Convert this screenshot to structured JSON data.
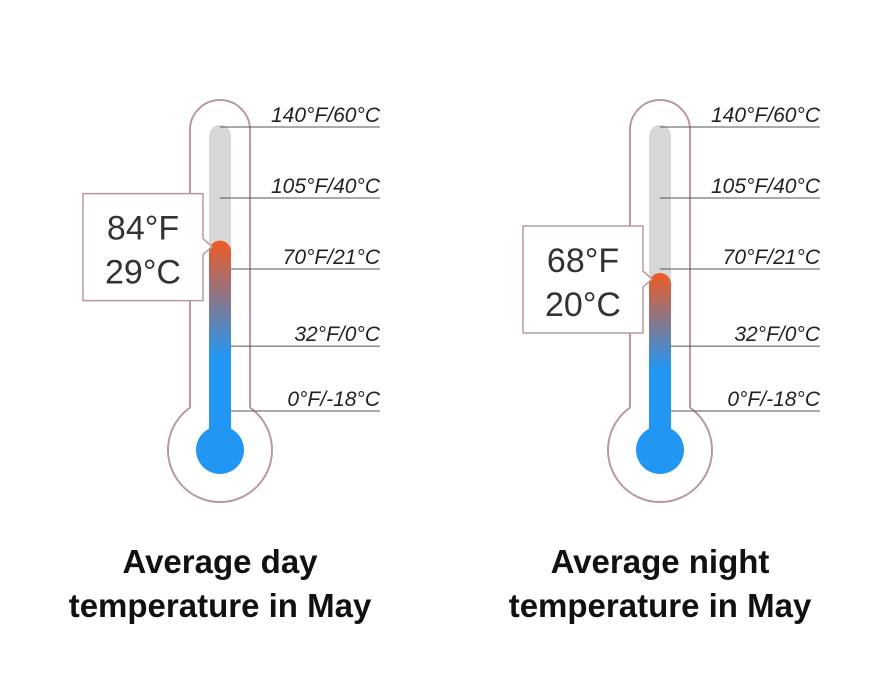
{
  "colors": {
    "outline": "#b89a9c",
    "tube_empty": "#d7d7d7",
    "mercury_cold": "#2196f3",
    "mercury_hot": "#ef5a24",
    "tick_line": "#555555",
    "reading_border": "#b89a9c"
  },
  "chart_data": [
    {
      "type": "thermometer",
      "title_lines": [
        "Average day",
        "temperature in May"
      ],
      "value_f": 84,
      "value_c": 29,
      "reading_f": "84°F",
      "reading_c": "29°C",
      "ticks": [
        {
          "value_f": 140,
          "label": "140°F/60°C"
        },
        {
          "value_f": 105,
          "label": "105°F/40°C"
        },
        {
          "value_f": 70,
          "label": "70°F/21°C"
        },
        {
          "value_f": 32,
          "label": "32°F/0°C"
        },
        {
          "value_f": 0,
          "label": "0°F/-18°C"
        }
      ],
      "scale_f": [
        0,
        140
      ]
    },
    {
      "type": "thermometer",
      "title_lines": [
        "Average night",
        "temperature in May"
      ],
      "value_f": 68,
      "value_c": 20,
      "reading_f": "68°F",
      "reading_c": "20°C",
      "ticks": [
        {
          "value_f": 140,
          "label": "140°F/60°C"
        },
        {
          "value_f": 105,
          "label": "105°F/40°C"
        },
        {
          "value_f": 70,
          "label": "70°F/21°C"
        },
        {
          "value_f": 32,
          "label": "32°F/0°C"
        },
        {
          "value_f": 0,
          "label": "0°F/-18°C"
        }
      ],
      "scale_f": [
        0,
        140
      ]
    }
  ]
}
